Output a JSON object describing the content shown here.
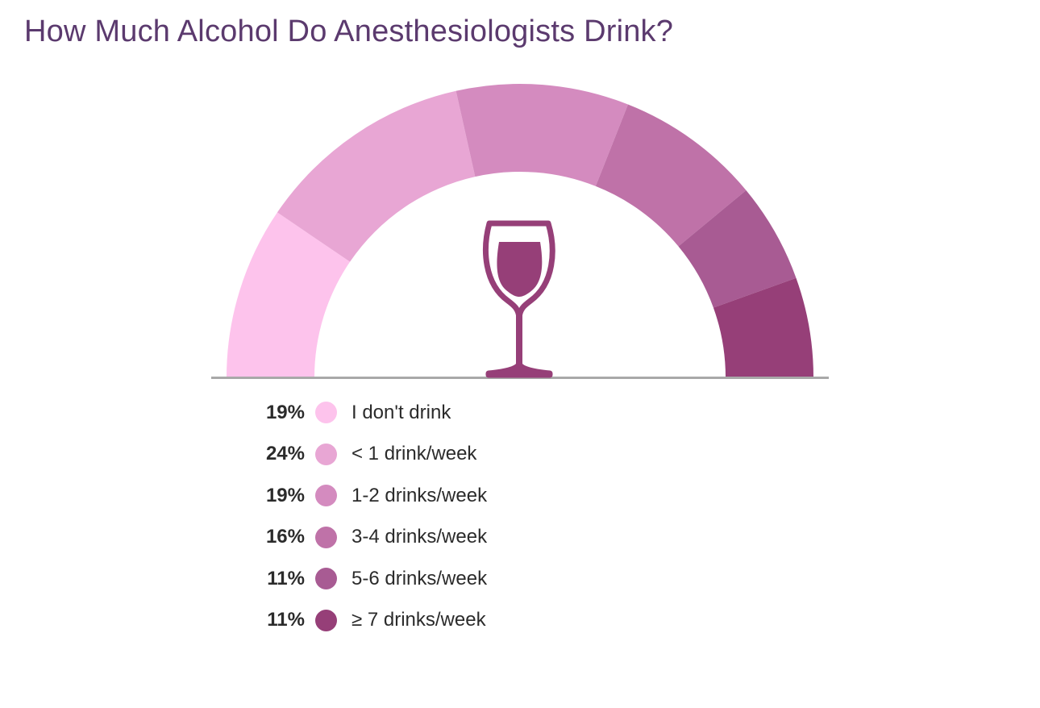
{
  "title": "How Much Alcohol Do Anesthesiologists Drink?",
  "chart_data": {
    "type": "pie",
    "variant": "semicircle-donut",
    "title": "How Much Alcohol Do Anesthesiologists Drink?",
    "unit": "%",
    "categories": [
      "I don't drink",
      "< 1 drink/week",
      "1-2 drinks/week",
      "3-4 drinks/week",
      "5-6 drinks/week",
      "≥ 7 drinks/week"
    ],
    "values": [
      19,
      24,
      19,
      16,
      11,
      11
    ],
    "value_labels": [
      "19%",
      "24%",
      "19%",
      "16%",
      "11%",
      "11%"
    ],
    "colors": [
      "#fdc3ec",
      "#e8a6d4",
      "#d48bbf",
      "#bf72a8",
      "#a85b93",
      "#963f78"
    ],
    "center_icon": "wine-glass-icon",
    "icon_color": "#963f78",
    "baseline_color": "#a8a8a8"
  }
}
